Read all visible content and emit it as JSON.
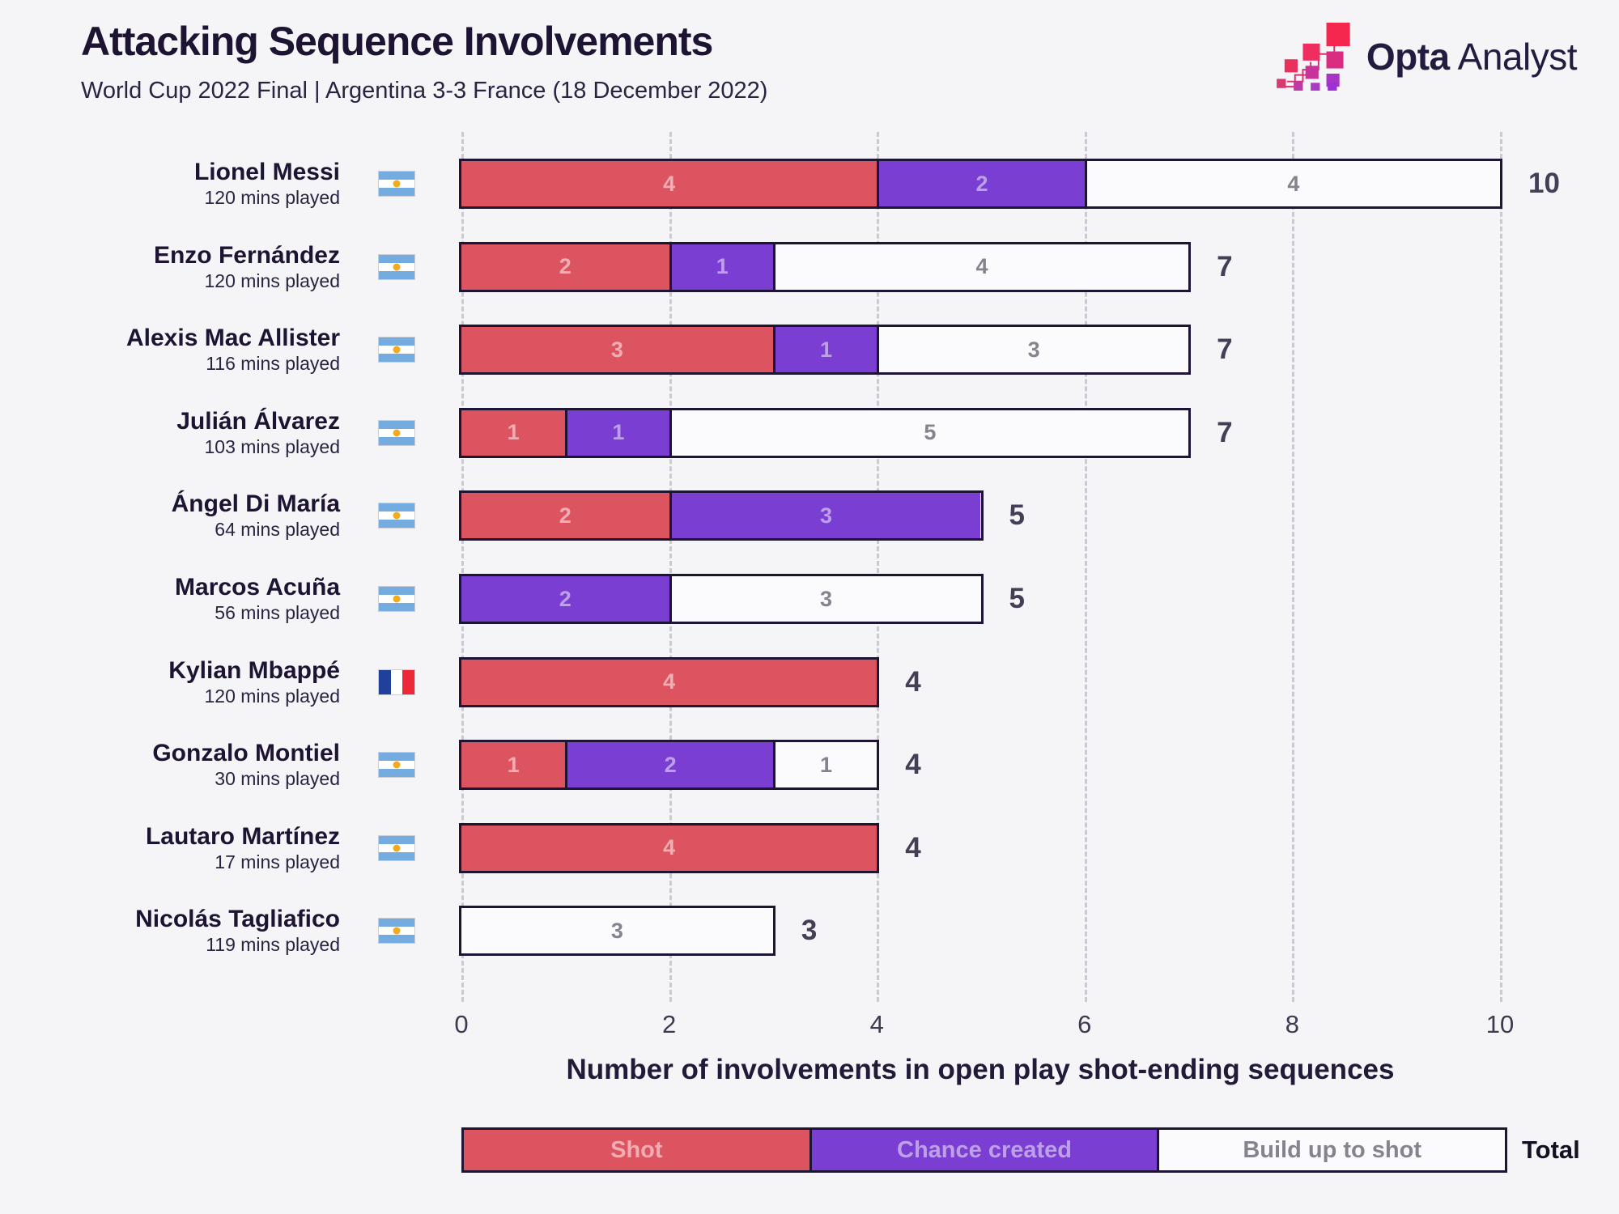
{
  "header": {
    "title": "Attacking Sequence Involvements",
    "subtitle": "World Cup 2022 Final | Argentina 3-3 France (18 December 2022)"
  },
  "logo": {
    "text_bold": "Opta",
    "text_light": "Analyst"
  },
  "colors": {
    "background": "#f5f4f6",
    "shot": "#dc5460",
    "chance": "#7a3ed2",
    "buildup": "#fbfbfd",
    "bar_border": "#1e1535",
    "gridline": "#cbc9d1",
    "total_text": "#453e57",
    "argentina_blue": "#74acdf",
    "argentina_sun": "#f2ab1d",
    "france_blue": "#21409a",
    "france_red": "#ed2939"
  },
  "axis": {
    "label": "Number of involvements in open play shot-ending sequences",
    "max": 10,
    "ticks": [
      {
        "value": 0,
        "label": "0"
      },
      {
        "value": 2,
        "label": "2"
      },
      {
        "value": 4,
        "label": "4"
      },
      {
        "value": 6,
        "label": "6"
      },
      {
        "value": 8,
        "label": "8"
      },
      {
        "value": 10,
        "label": "10"
      }
    ]
  },
  "legend": {
    "items": [
      {
        "key": "shot",
        "label": "Shot"
      },
      {
        "key": "chance",
        "label": "Chance created"
      },
      {
        "key": "buildup",
        "label": "Build up to shot"
      }
    ],
    "total_label": "Total"
  },
  "players": [
    {
      "name": "Lionel Messi",
      "mins": "120 mins played",
      "flag": "argentina",
      "segments": [
        {
          "type": "shot",
          "value": 4
        },
        {
          "type": "chance",
          "value": 2
        },
        {
          "type": "buildup",
          "value": 4
        }
      ],
      "total": 10
    },
    {
      "name": "Enzo Fernández",
      "mins": "120 mins played",
      "flag": "argentina",
      "segments": [
        {
          "type": "shot",
          "value": 2
        },
        {
          "type": "chance",
          "value": 1
        },
        {
          "type": "buildup",
          "value": 4
        }
      ],
      "total": 7
    },
    {
      "name": "Alexis Mac Allister",
      "mins": "116 mins played",
      "flag": "argentina",
      "segments": [
        {
          "type": "shot",
          "value": 3
        },
        {
          "type": "chance",
          "value": 1
        },
        {
          "type": "buildup",
          "value": 3
        }
      ],
      "total": 7
    },
    {
      "name": "Julián Álvarez",
      "mins": "103 mins played",
      "flag": "argentina",
      "segments": [
        {
          "type": "shot",
          "value": 1
        },
        {
          "type": "chance",
          "value": 1
        },
        {
          "type": "buildup",
          "value": 5
        }
      ],
      "total": 7
    },
    {
      "name": "Ángel Di María",
      "mins": "64 mins played",
      "flag": "argentina",
      "segments": [
        {
          "type": "shot",
          "value": 2
        },
        {
          "type": "chance",
          "value": 3
        }
      ],
      "total": 5
    },
    {
      "name": "Marcos Acuña",
      "mins": "56 mins played",
      "flag": "argentina",
      "segments": [
        {
          "type": "chance",
          "value": 2
        },
        {
          "type": "buildup",
          "value": 3
        }
      ],
      "total": 5
    },
    {
      "name": "Kylian Mbappé",
      "mins": "120 mins played",
      "flag": "france",
      "segments": [
        {
          "type": "shot",
          "value": 4
        }
      ],
      "total": 4
    },
    {
      "name": "Gonzalo Montiel",
      "mins": "30 mins played",
      "flag": "argentina",
      "segments": [
        {
          "type": "shot",
          "value": 1
        },
        {
          "type": "chance",
          "value": 2
        },
        {
          "type": "buildup",
          "value": 1
        }
      ],
      "total": 4
    },
    {
      "name": "Lautaro Martínez",
      "mins": "17 mins played",
      "flag": "argentina",
      "segments": [
        {
          "type": "shot",
          "value": 4
        }
      ],
      "total": 4
    },
    {
      "name": "Nicolás Tagliafico",
      "mins": "119 mins played",
      "flag": "argentina",
      "segments": [
        {
          "type": "buildup",
          "value": 3
        }
      ],
      "total": 3
    }
  ],
  "chart_data": {
    "type": "bar",
    "orientation": "horizontal",
    "stacked": true,
    "title": "Attacking Sequence Involvements",
    "subtitle": "World Cup 2022 Final | Argentina 3-3 France (18 December 2022)",
    "xlabel": "Number of involvements in open play shot-ending sequences",
    "ylabel": "",
    "xlim": [
      0,
      10
    ],
    "grid": "dashed-vertical",
    "legend_position": "bottom",
    "categories": [
      "Lionel Messi",
      "Enzo Fernández",
      "Alexis Mac Allister",
      "Julián Álvarez",
      "Ángel Di María",
      "Marcos Acuña",
      "Kylian Mbappé",
      "Gonzalo Montiel",
      "Lautaro Martínez",
      "Nicolás Tagliafico"
    ],
    "series": [
      {
        "name": "Shot",
        "color": "#dc5460",
        "values": [
          4,
          2,
          3,
          1,
          2,
          0,
          4,
          1,
          4,
          0
        ]
      },
      {
        "name": "Chance created",
        "color": "#7a3ed2",
        "values": [
          2,
          1,
          1,
          1,
          3,
          2,
          0,
          2,
          0,
          0
        ]
      },
      {
        "name": "Build up to shot",
        "color": "#fbfbfd",
        "values": [
          4,
          4,
          3,
          5,
          0,
          3,
          0,
          1,
          0,
          3
        ]
      }
    ],
    "totals": [
      10,
      7,
      7,
      7,
      5,
      5,
      4,
      4,
      4,
      3
    ]
  }
}
